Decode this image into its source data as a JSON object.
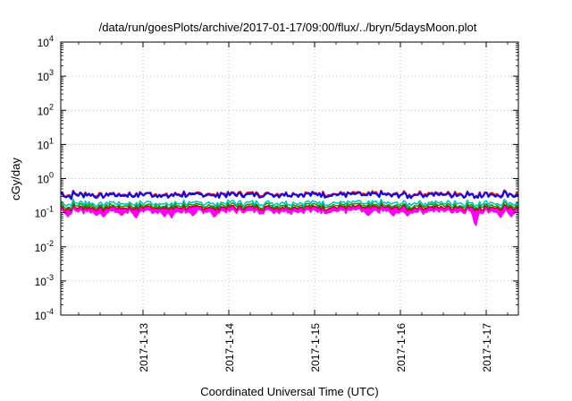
{
  "chart_data": {
    "type": "line",
    "title": "/data/run/goesPlots/archive/2017-01-17/09:00/flux/../bryn/5daysMoon.plot",
    "xlabel": "Coordinated Universal Time (UTC)",
    "ylabel": "cGy/day",
    "yscale": "log",
    "ylim": [
      0.0001,
      10000
    ],
    "y_ticks": [
      {
        "value": 0.0001,
        "base": "10",
        "exp": "-4"
      },
      {
        "value": 0.001,
        "base": "10",
        "exp": "-3"
      },
      {
        "value": 0.01,
        "base": "10",
        "exp": "-2"
      },
      {
        "value": 0.1,
        "base": "10",
        "exp": "-1"
      },
      {
        "value": 1,
        "base": "10",
        "exp": "0"
      },
      {
        "value": 10,
        "base": "10",
        "exp": "1"
      },
      {
        "value": 100,
        "base": "10",
        "exp": "2"
      },
      {
        "value": 1000,
        "base": "10",
        "exp": "3"
      },
      {
        "value": 10000,
        "base": "10",
        "exp": "4"
      }
    ],
    "xlim": [
      "2017-01-12 01:00",
      "2017-01-17 09:00"
    ],
    "x_ticks": [
      "2017-1-13",
      "2017-1-14",
      "2017-1-15",
      "2017-1-16",
      "2017-1-17"
    ],
    "grid": true,
    "legend": "none",
    "series": [
      {
        "color": "#ff00ff",
        "typical": 0.11,
        "fill": true
      },
      {
        "color": "#c00000",
        "typical": 0.14
      },
      {
        "color": "#00a000",
        "typical": 0.16
      },
      {
        "color": "#00c0c0",
        "typical": 0.19
      },
      {
        "color": "#ff0000",
        "typical": 0.35
      },
      {
        "color": "#0000ff",
        "typical": 0.33
      }
    ],
    "dips": [
      {
        "x": "2017-01-12 03:00",
        "y": 0.075
      },
      {
        "x": "2017-01-12 11:00",
        "y": 0.08
      },
      {
        "x": "2017-01-12 13:00",
        "y": 0.07
      },
      {
        "x": "2017-01-12 18:00",
        "y": 0.08
      },
      {
        "x": "2017-01-12 22:00",
        "y": 0.065
      },
      {
        "x": "2017-01-13 06:00",
        "y": 0.075
      },
      {
        "x": "2017-01-13 08:00",
        "y": 0.07
      },
      {
        "x": "2017-01-13 14:00",
        "y": 0.08
      },
      {
        "x": "2017-01-13 20:00",
        "y": 0.07
      },
      {
        "x": "2017-01-15 15:00",
        "y": 0.08
      },
      {
        "x": "2017-01-15 22:00",
        "y": 0.08
      },
      {
        "x": "2017-01-16 02:00",
        "y": 0.08
      },
      {
        "x": "2017-01-16 21:00",
        "y": 0.03
      },
      {
        "x": "2017-01-17 04:00",
        "y": 0.07
      },
      {
        "x": "2017-01-17 07:00",
        "y": 0.075
      }
    ]
  }
}
